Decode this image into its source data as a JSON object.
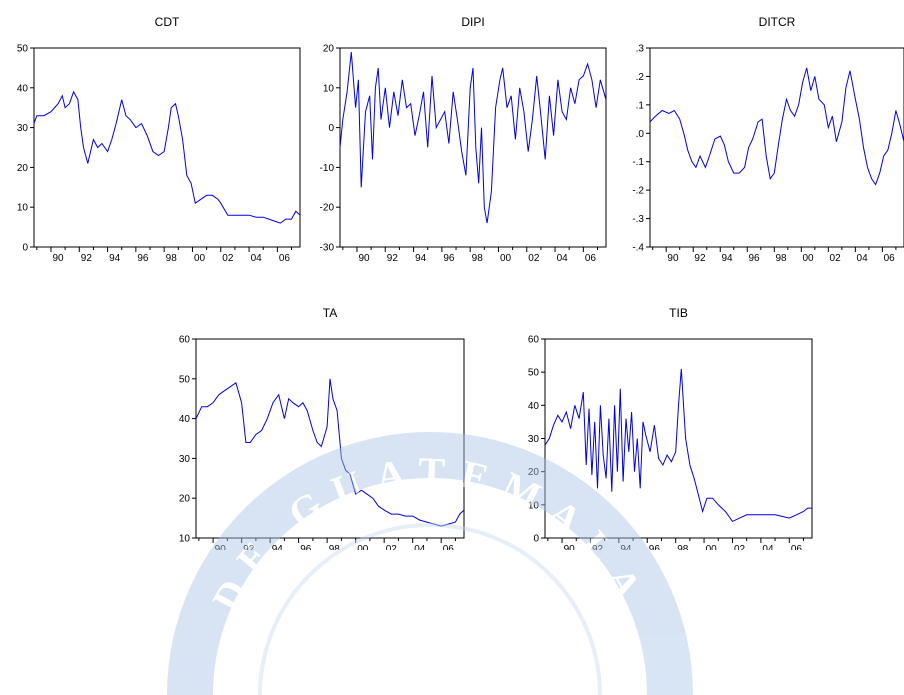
{
  "figure": {
    "watermark_text": "DE GUATEMALA",
    "watermark_color": "#a9c5e6",
    "series_color": "#0000e6"
  },
  "chart_data": [
    {
      "type": "line",
      "title": "CDT",
      "xlabel": "",
      "ylabel": "",
      "xlim": [
        1988.8,
        2007.6
      ],
      "ylim": [
        0,
        50
      ],
      "yticks": [
        0,
        10,
        20,
        30,
        40,
        50
      ],
      "ytick_labels": [
        "0",
        "10",
        "20",
        "30",
        "40",
        "50"
      ],
      "xticks": [
        1990,
        1992,
        1994,
        1996,
        1998,
        2000,
        2002,
        2004,
        2006
      ],
      "xtick_labels": [
        "90",
        "92",
        "94",
        "96",
        "98",
        "00",
        "02",
        "04",
        "06"
      ],
      "grid": false,
      "x": [
        1988.8,
        1989.0,
        1989.5,
        1990.0,
        1990.5,
        1990.8,
        1991.0,
        1991.3,
        1991.6,
        1991.9,
        1992.1,
        1992.3,
        1992.6,
        1993.0,
        1993.3,
        1993.6,
        1994.0,
        1994.3,
        1994.6,
        1995.0,
        1995.3,
        1995.6,
        1996.0,
        1996.4,
        1996.8,
        1997.2,
        1997.6,
        1998.0,
        1998.3,
        1998.5,
        1998.8,
        1999.0,
        1999.3,
        1999.6,
        1999.9,
        2000.2,
        2000.6,
        2001.0,
        2001.4,
        2001.8,
        2002.0,
        2002.5,
        2003.0,
        2003.5,
        2004.0,
        2004.5,
        2005.0,
        2005.4,
        2005.8,
        2006.2,
        2006.6,
        2007.0,
        2007.3,
        2007.6
      ],
      "y": [
        31,
        33,
        33,
        34,
        36,
        38,
        35,
        36,
        39,
        37,
        30,
        25,
        21,
        27,
        25,
        26,
        24,
        27,
        31,
        37,
        33,
        32,
        30,
        31,
        28,
        24,
        23,
        24,
        30,
        35,
        36,
        33,
        27,
        18,
        16,
        11,
        12,
        13,
        13,
        12,
        11,
        8,
        8,
        8,
        8,
        7.5,
        7.5,
        7,
        6.5,
        6,
        7,
        7,
        9,
        8
      ]
    },
    {
      "type": "line",
      "title": "DIPI",
      "xlabel": "",
      "ylabel": "",
      "xlim": [
        1988.8,
        2007.6
      ],
      "ylim": [
        -30,
        20
      ],
      "yticks": [
        -30,
        -20,
        -10,
        0,
        10,
        20
      ],
      "ytick_labels": [
        "-30",
        "-20",
        "-10",
        "0",
        "10",
        "20"
      ],
      "xticks": [
        1990,
        1992,
        1994,
        1996,
        1998,
        2000,
        2002,
        2004,
        2006
      ],
      "xtick_labels": [
        "90",
        "92",
        "94",
        "96",
        "98",
        "00",
        "02",
        "04",
        "06"
      ],
      "grid": false,
      "x": [
        1988.8,
        1989.0,
        1989.3,
        1989.6,
        1989.9,
        1990.1,
        1990.3,
        1990.6,
        1990.9,
        1991.1,
        1991.3,
        1991.5,
        1991.7,
        1992.0,
        1992.3,
        1992.6,
        1992.9,
        1993.2,
        1993.5,
        1993.8,
        1994.1,
        1994.4,
        1994.7,
        1995.0,
        1995.3,
        1995.6,
        1995.9,
        1996.2,
        1996.5,
        1996.8,
        1997.1,
        1997.4,
        1997.7,
        1998.0,
        1998.2,
        1998.4,
        1998.6,
        1998.8,
        1999.0,
        1999.2,
        1999.5,
        1999.8,
        2000.1,
        2000.3,
        2000.6,
        2000.9,
        2001.2,
        2001.5,
        2001.8,
        2002.1,
        2002.4,
        2002.7,
        2003.0,
        2003.3,
        2003.6,
        2003.9,
        2004.2,
        2004.5,
        2004.8,
        2005.1,
        2005.4,
        2005.7,
        2006.0,
        2006.3,
        2006.6,
        2006.9,
        2007.2,
        2007.6
      ],
      "y": [
        -5,
        2,
        9,
        19,
        5,
        12,
        -15,
        4,
        8,
        -8,
        10,
        15,
        2,
        10,
        0,
        9,
        3,
        12,
        5,
        6,
        -2,
        3,
        9,
        -5,
        13,
        0,
        2,
        4,
        -4,
        9,
        2,
        -6,
        -12,
        10,
        15,
        -5,
        -14,
        0,
        -20,
        -24,
        -16,
        5,
        12,
        15,
        5,
        8,
        -3,
        10,
        4,
        -6,
        2,
        13,
        3,
        -8,
        8,
        -2,
        12,
        4,
        2,
        10,
        6,
        12,
        13,
        16,
        12,
        5,
        12,
        7
      ]
    },
    {
      "type": "line",
      "title": "DITCR",
      "xlabel": "",
      "ylabel": "",
      "xlim": [
        1988.8,
        2007.6
      ],
      "ylim": [
        -0.4,
        0.3
      ],
      "yticks": [
        -0.4,
        -0.3,
        -0.2,
        -0.1,
        0.0,
        0.1,
        0.2,
        0.3
      ],
      "ytick_labels": [
        "-.4",
        "-.3",
        "-.2",
        "-.1",
        ".0",
        ".1",
        ".2",
        ".3"
      ],
      "xticks": [
        1990,
        1992,
        1994,
        1996,
        1998,
        2000,
        2002,
        2004,
        2006
      ],
      "xtick_labels": [
        "90",
        "92",
        "94",
        "96",
        "98",
        "00",
        "02",
        "04",
        "06"
      ],
      "grid": false,
      "x": [
        1988.8,
        1989.2,
        1989.7,
        1990.2,
        1990.6,
        1991.0,
        1991.3,
        1991.6,
        1991.9,
        1992.2,
        1992.5,
        1992.9,
        1993.2,
        1993.6,
        1994.0,
        1994.3,
        1994.6,
        1995.0,
        1995.4,
        1995.8,
        1996.1,
        1996.4,
        1996.8,
        1997.1,
        1997.4,
        1997.7,
        1998.0,
        1998.3,
        1998.6,
        1998.9,
        1999.2,
        1999.5,
        1999.8,
        2000.1,
        2000.4,
        2000.7,
        2001.0,
        2001.3,
        2001.7,
        2002.0,
        2002.3,
        2002.6,
        2003.0,
        2003.3,
        2003.6,
        2004.0,
        2004.3,
        2004.6,
        2004.9,
        2005.2,
        2005.5,
        2005.8,
        2006.1,
        2006.4,
        2006.7,
        2007.0,
        2007.3,
        2007.6
      ],
      "y": [
        0.04,
        0.06,
        0.08,
        0.07,
        0.08,
        0.05,
        0.0,
        -0.06,
        -0.1,
        -0.12,
        -0.08,
        -0.12,
        -0.08,
        -0.02,
        -0.01,
        -0.04,
        -0.1,
        -0.14,
        -0.14,
        -0.12,
        -0.05,
        -0.02,
        0.04,
        0.05,
        -0.08,
        -0.16,
        -0.14,
        -0.04,
        0.05,
        0.12,
        0.08,
        0.06,
        0.1,
        0.18,
        0.23,
        0.15,
        0.2,
        0.12,
        0.1,
        0.02,
        0.06,
        -0.03,
        0.04,
        0.16,
        0.22,
        0.12,
        0.05,
        -0.05,
        -0.12,
        -0.16,
        -0.18,
        -0.14,
        -0.08,
        -0.06,
        0.0,
        0.08,
        0.03,
        -0.03
      ]
    },
    {
      "type": "line",
      "title": "TA",
      "xlabel": "",
      "ylabel": "",
      "xlim": [
        1988.8,
        2007.6
      ],
      "ylim": [
        10,
        60
      ],
      "yticks": [
        10,
        20,
        30,
        40,
        50,
        60
      ],
      "ytick_labels": [
        "10",
        "20",
        "30",
        "40",
        "50",
        "60"
      ],
      "xticks": [
        1990,
        1992,
        1994,
        1996,
        1998,
        2000,
        2002,
        2004,
        2006
      ],
      "xtick_labels": [
        "90",
        "92",
        "94",
        "96",
        "98",
        "00",
        "02",
        "04",
        "06"
      ],
      "grid": false,
      "x": [
        1988.8,
        1989.2,
        1989.6,
        1990.0,
        1990.4,
        1990.8,
        1991.2,
        1991.6,
        1992.0,
        1992.3,
        1992.6,
        1993.0,
        1993.4,
        1993.8,
        1994.2,
        1994.6,
        1995.0,
        1995.3,
        1995.6,
        1996.0,
        1996.3,
        1996.6,
        1997.0,
        1997.3,
        1997.6,
        1998.0,
        1998.2,
        1998.4,
        1998.7,
        1999.0,
        1999.3,
        1999.6,
        2000.0,
        2000.4,
        2000.8,
        2001.2,
        2001.6,
        2002.0,
        2002.5,
        2003.0,
        2003.5,
        2004.0,
        2004.5,
        2005.0,
        2005.5,
        2006.0,
        2006.5,
        2007.0,
        2007.3,
        2007.6
      ],
      "y": [
        40,
        43,
        43,
        44,
        46,
        47,
        48,
        49,
        44,
        34,
        34,
        36,
        37,
        40,
        44,
        46,
        40,
        45,
        44,
        43,
        44,
        42,
        37,
        34,
        33,
        38,
        50,
        45,
        42,
        30,
        27,
        26,
        21,
        22,
        21,
        20,
        18,
        17,
        16,
        16,
        15.5,
        15.5,
        14.5,
        14,
        13.5,
        13,
        13.5,
        14,
        16,
        17
      ]
    },
    {
      "type": "line",
      "title": "TIB",
      "xlabel": "",
      "ylabel": "",
      "xlim": [
        1988.8,
        2007.6
      ],
      "ylim": [
        0,
        60
      ],
      "yticks": [
        0,
        10,
        20,
        30,
        40,
        50,
        60
      ],
      "ytick_labels": [
        "0",
        "10",
        "20",
        "30",
        "40",
        "50",
        "60"
      ],
      "xticks": [
        1990,
        1992,
        1994,
        1996,
        1998,
        2000,
        2002,
        2004,
        2006
      ],
      "xtick_labels": [
        "90",
        "92",
        "94",
        "96",
        "98",
        "00",
        "02",
        "04",
        "06"
      ],
      "grid": false,
      "x": [
        1988.8,
        1989.1,
        1989.4,
        1989.7,
        1990.0,
        1990.3,
        1990.6,
        1990.9,
        1991.2,
        1991.5,
        1991.7,
        1991.9,
        1992.1,
        1992.3,
        1992.5,
        1992.7,
        1992.9,
        1993.1,
        1993.3,
        1993.5,
        1993.7,
        1993.9,
        1994.1,
        1994.3,
        1994.5,
        1994.7,
        1994.9,
        1995.1,
        1995.3,
        1995.5,
        1995.7,
        1995.9,
        1996.2,
        1996.5,
        1996.8,
        1997.1,
        1997.4,
        1997.7,
        1998.0,
        1998.2,
        1998.4,
        1998.7,
        1999.0,
        1999.3,
        1999.6,
        1999.9,
        2000.2,
        2000.6,
        2001.0,
        2001.5,
        2002.0,
        2002.5,
        2003.0,
        2003.5,
        2004.0,
        2004.5,
        2005.0,
        2005.5,
        2006.0,
        2006.5,
        2007.0,
        2007.3,
        2007.6
      ],
      "y": [
        28,
        30,
        34,
        37,
        35,
        38,
        33,
        40,
        36,
        44,
        22,
        39,
        19,
        35,
        15,
        40,
        25,
        18,
        36,
        14,
        40,
        20,
        45,
        17,
        36,
        26,
        38,
        20,
        30,
        15,
        35,
        31,
        26,
        34,
        24,
        22,
        25,
        23,
        26,
        40,
        51,
        30,
        22,
        18,
        13,
        8,
        12,
        12,
        10,
        8,
        5,
        6,
        7,
        7,
        7,
        7,
        7,
        6.5,
        6,
        7,
        8,
        9,
        9
      ]
    }
  ]
}
